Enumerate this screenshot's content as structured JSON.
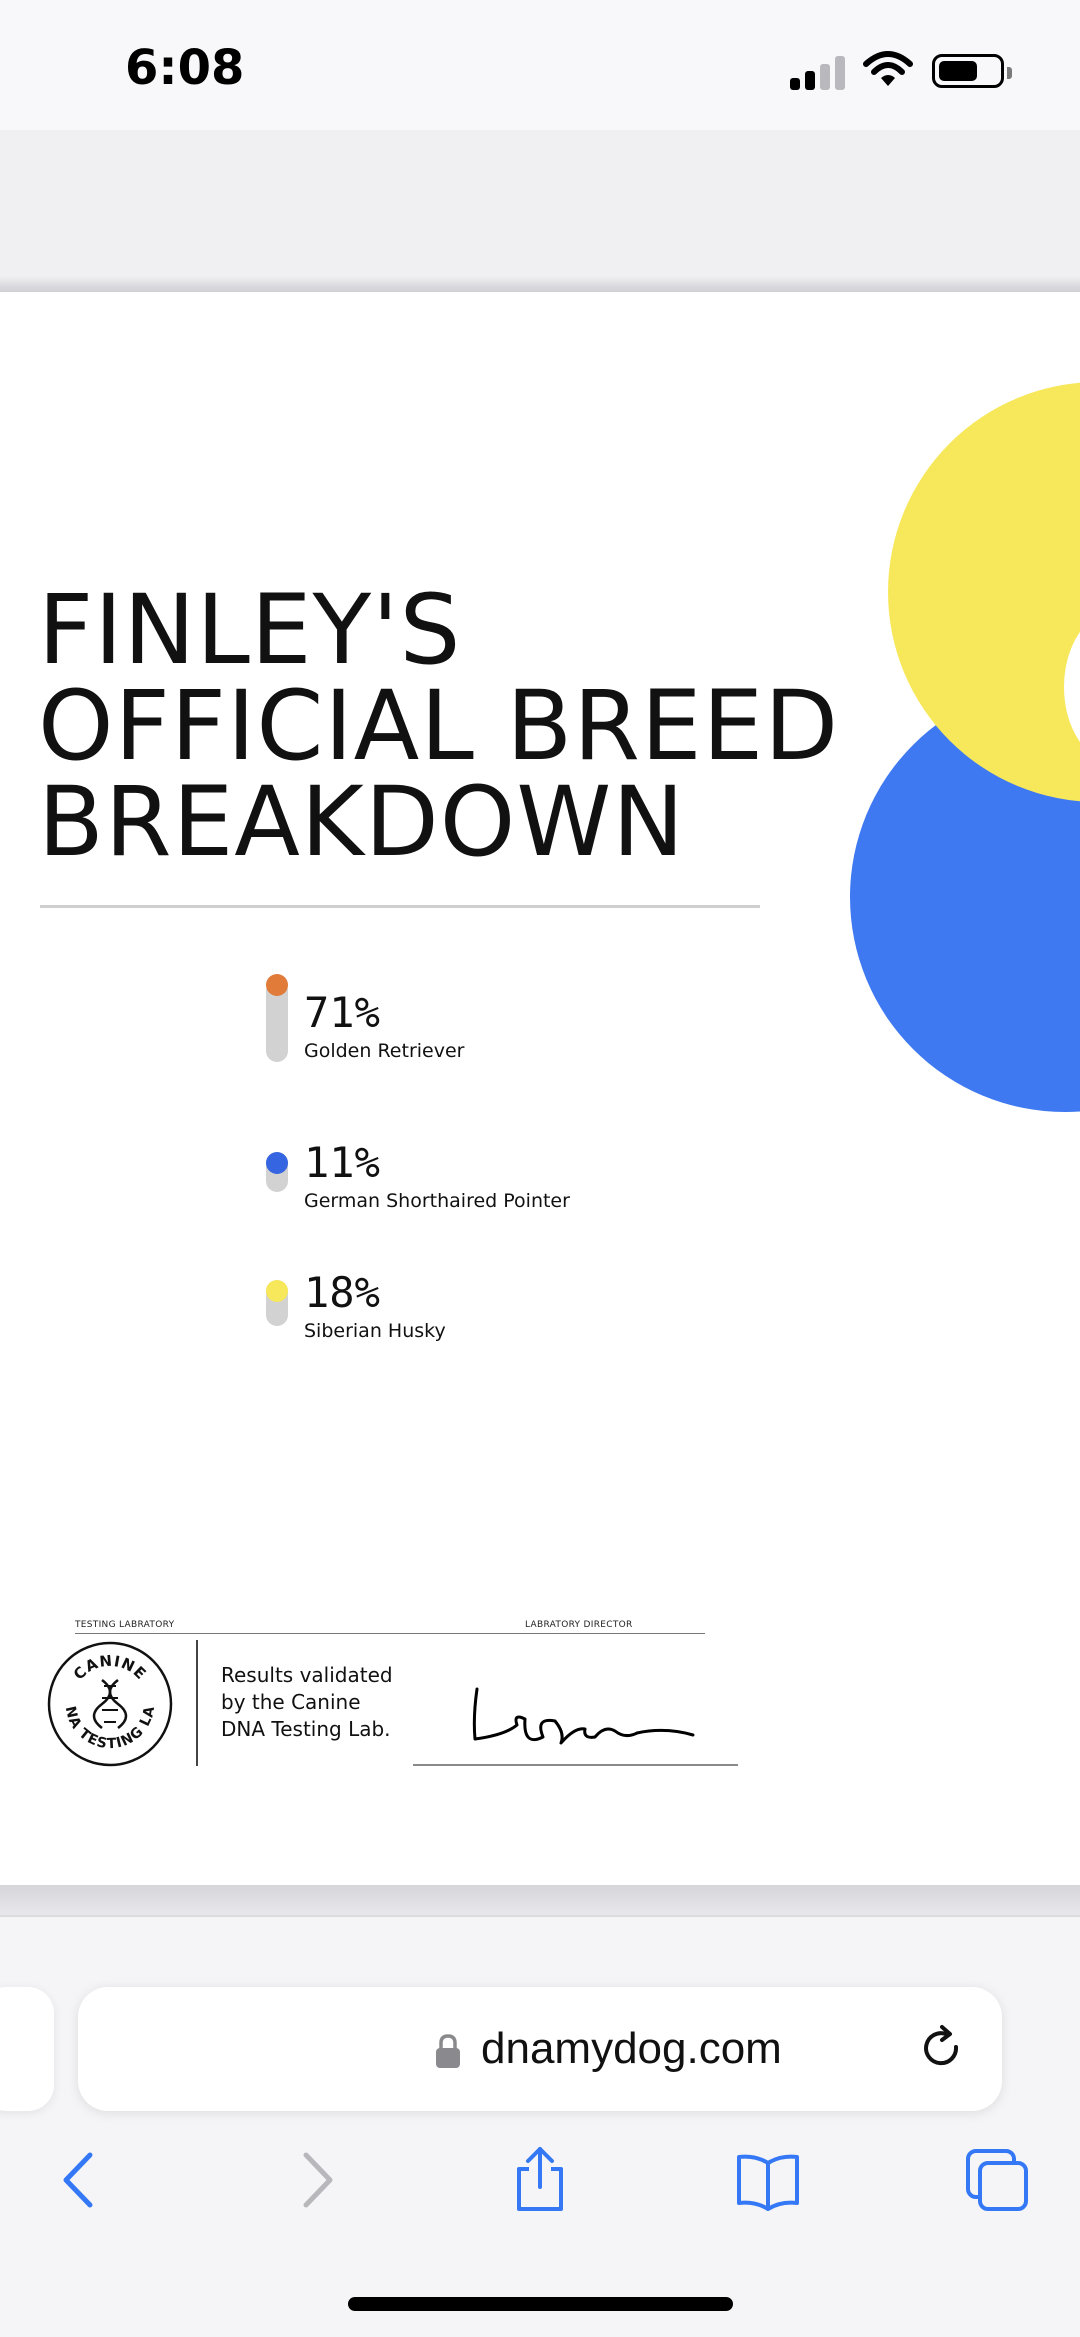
{
  "status_bar": {
    "time": "6:08",
    "icons": [
      "cellular-signal-icon",
      "wifi-icon",
      "battery-icon"
    ]
  },
  "document": {
    "title_lines": [
      "FINLEY'S",
      "OFFICIAL BREED",
      "BREAKDOWN"
    ],
    "colors": {
      "yellow": "#f7e85b",
      "blue": "#3f79f2",
      "orange": "#e07b39",
      "track": "#d2d2d2"
    },
    "breeds": [
      {
        "percent": "71%",
        "value": 71,
        "name": "Golden Retriever",
        "color": "#e07b39"
      },
      {
        "percent": "11%",
        "value": 11,
        "name": "German Shorthaired Pointer",
        "color": "#3565e0"
      },
      {
        "percent": "18%",
        "value": 18,
        "name": "Siberian Husky",
        "color": "#f7e85b"
      }
    ],
    "footer": {
      "testing_lab_label": "TESTING LABRATORY",
      "director_label": "LABRATORY DIRECTOR",
      "seal_top": "CANINE",
      "seal_bottom": "DNA TESTING LAB",
      "validated_lines": [
        "Results validated",
        "by the Canine",
        "DNA Testing Lab."
      ]
    }
  },
  "browser": {
    "url": "dnamydog.com",
    "toolbar": [
      "back-icon",
      "forward-icon",
      "share-icon",
      "bookmarks-icon",
      "tabs-icon"
    ],
    "accent": "#3478f6"
  }
}
